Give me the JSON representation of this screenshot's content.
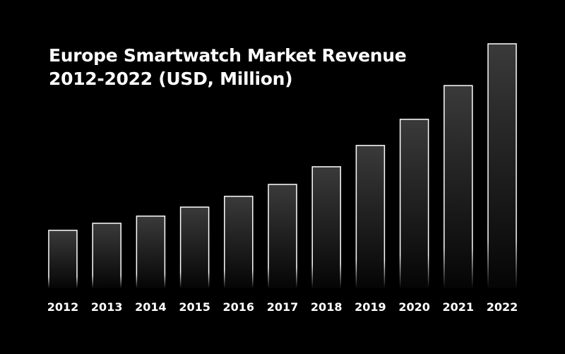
{
  "chart_data": {
    "type": "bar",
    "title": "Europe Smartwatch Market Revenue 2012-2022 (USD, Million)",
    "title_lines": [
      "Europe Smartwatch Market Revenue",
      "2012-2022 (USD, Million)"
    ],
    "categories": [
      "2012",
      "2013",
      "2014",
      "2015",
      "2016",
      "2017",
      "2018",
      "2019",
      "2020",
      "2021",
      "2022"
    ],
    "values": [
      23.7,
      26.6,
      29.5,
      33.2,
      37.6,
      42.5,
      49.7,
      58.4,
      69.1,
      82.9,
      100
    ],
    "value_note_scale": "relative, no y-axis shown",
    "xlabel": "",
    "ylabel": "",
    "ylim": [
      0,
      100
    ],
    "grid": false,
    "colors": {
      "background": "#000000",
      "bar_outline": "#ffffff",
      "bar_fill_top": "#3a3a3a",
      "bar_fill_bottom": "#0a0a0a",
      "text": "#ffffff"
    }
  }
}
